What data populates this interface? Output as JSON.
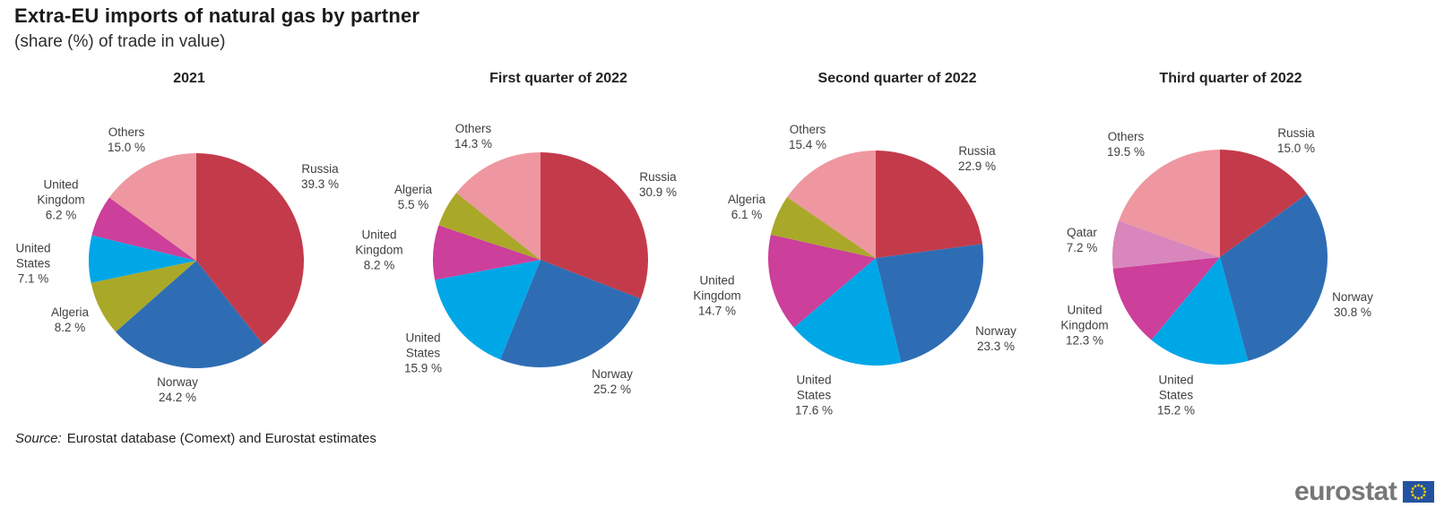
{
  "page": {
    "title": "Extra-EU imports of natural gas by partner",
    "subtitle": "(share (%) of trade in value)",
    "source_prefix": "Source:",
    "source_text": "Eurostat database (Comext) and Eurostat estimates",
    "logo_text": "eurostat",
    "logo_flag_icon": "eu-flag-icon"
  },
  "colors": {
    "Russia": "#c33b4b",
    "Norway": "#2e6db4",
    "United States": "#00a7e7",
    "United Kingdom": "#cc3f9a",
    "Algeria": "#aaa829",
    "Qatar": "#d886bb",
    "Others": "#ee97a0",
    "eu_flag_blue": "#2352a0",
    "eu_star_yellow": "#ffcc00"
  },
  "chart_data": [
    {
      "type": "pie",
      "title": "2021",
      "unit": "%",
      "start_angle_deg": 0,
      "direction": "clockwise",
      "slices": [
        {
          "label": "Russia",
          "value": 39.3
        },
        {
          "label": "Norway",
          "value": 24.2
        },
        {
          "label": "Algeria",
          "value": 8.2
        },
        {
          "label": "United States",
          "value": 7.1
        },
        {
          "label": "United Kingdom",
          "value": 6.2
        },
        {
          "label": "Others",
          "value": 15.0
        }
      ]
    },
    {
      "type": "pie",
      "title": "First quarter of 2022",
      "unit": "%",
      "start_angle_deg": 0,
      "direction": "clockwise",
      "slices": [
        {
          "label": "Russia",
          "value": 30.9
        },
        {
          "label": "Norway",
          "value": 25.2
        },
        {
          "label": "United States",
          "value": 15.9
        },
        {
          "label": "United Kingdom",
          "value": 8.2
        },
        {
          "label": "Algeria",
          "value": 5.5
        },
        {
          "label": "Others",
          "value": 14.3
        }
      ]
    },
    {
      "type": "pie",
      "title": "Second quarter of 2022",
      "unit": "%",
      "start_angle_deg": 0,
      "direction": "clockwise",
      "slices": [
        {
          "label": "Russia",
          "value": 22.9
        },
        {
          "label": "Norway",
          "value": 23.3
        },
        {
          "label": "United States",
          "value": 17.6
        },
        {
          "label": "United Kingdom",
          "value": 14.7
        },
        {
          "label": "Algeria",
          "value": 6.1
        },
        {
          "label": "Others",
          "value": 15.4
        }
      ]
    },
    {
      "type": "pie",
      "title": "Third quarter of 2022",
      "unit": "%",
      "start_angle_deg": 0,
      "direction": "clockwise",
      "slices": [
        {
          "label": "Russia",
          "value": 15.0
        },
        {
          "label": "Norway",
          "value": 30.8
        },
        {
          "label": "United States",
          "value": 15.2
        },
        {
          "label": "United Kingdom",
          "value": 12.3
        },
        {
          "label": "Qatar",
          "value": 7.2
        },
        {
          "label": "Others",
          "value": 19.5
        }
      ]
    }
  ]
}
